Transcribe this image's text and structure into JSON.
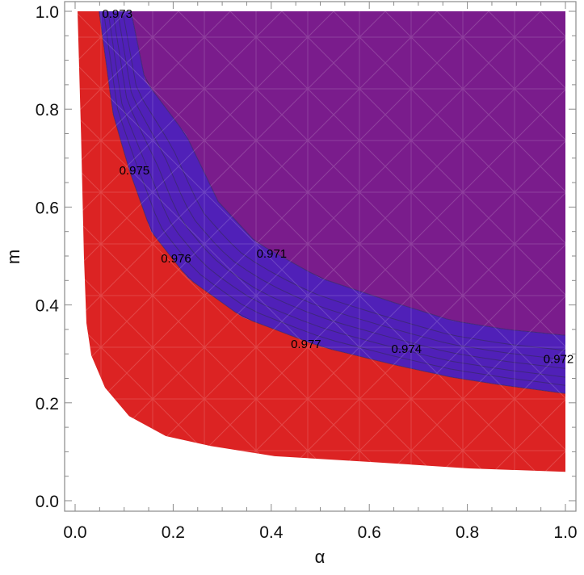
{
  "chart_data": {
    "type": "area",
    "title": "",
    "xlabel": "α",
    "ylabel": "m",
    "xlim": [
      0.0,
      1.0
    ],
    "ylim": [
      0.0,
      1.0
    ],
    "grid": false,
    "legend": null,
    "x_ticks": [
      "0.0",
      "0.2",
      "0.4",
      "0.6",
      "0.8",
      "1.0"
    ],
    "y_ticks": [
      "0.0",
      "0.2",
      "0.4",
      "0.6",
      "0.8",
      "1.0"
    ],
    "colors": {
      "red_region": "#dc2323",
      "blue_band": "#5020b8",
      "purple_region": "#7a1c8c",
      "contour_line": "#3a2a6a",
      "mesh": "#ffffff"
    },
    "regions": {
      "lower_boundary": [
        [
          0.005,
          1.0
        ],
        [
          0.012,
          0.75
        ],
        [
          0.018,
          0.5
        ],
        [
          0.023,
          0.363
        ],
        [
          0.033,
          0.297
        ],
        [
          0.061,
          0.231
        ],
        [
          0.11,
          0.173
        ],
        [
          0.185,
          0.132
        ],
        [
          0.275,
          0.112
        ],
        [
          0.407,
          0.091
        ],
        [
          0.605,
          0.079
        ],
        [
          0.803,
          0.066
        ],
        [
          1.0,
          0.059
        ]
      ],
      "red_blue_boundary": [
        [
          0.049,
          1.0
        ],
        [
          0.077,
          0.792
        ],
        [
          0.11,
          0.677
        ],
        [
          0.155,
          0.55
        ],
        [
          0.23,
          0.455
        ],
        [
          0.341,
          0.375
        ],
        [
          0.5,
          0.315
        ],
        [
          0.65,
          0.278
        ],
        [
          0.769,
          0.252
        ],
        [
          0.88,
          0.235
        ],
        [
          1.0,
          0.219
        ]
      ],
      "blue_purple_boundary": [
        [
          0.114,
          1.0
        ],
        [
          0.143,
          0.858
        ],
        [
          0.226,
          0.748
        ],
        [
          0.292,
          0.611
        ],
        [
          0.369,
          0.528
        ],
        [
          0.5,
          0.455
        ],
        [
          0.65,
          0.405
        ],
        [
          0.769,
          0.368
        ],
        [
          0.88,
          0.35
        ],
        [
          1.0,
          0.338
        ]
      ]
    },
    "contours": [
      {
        "level": "0.971",
        "label_pos": [
          0.37,
          0.505
        ]
      },
      {
        "level": "0.972",
        "label_pos": [
          0.955,
          0.29
        ]
      },
      {
        "level": "0.973",
        "label_pos": [
          0.055,
          0.995
        ]
      },
      {
        "level": "0.974",
        "label_pos": [
          0.645,
          0.31
        ]
      },
      {
        "level": "0.975",
        "label_pos": [
          0.09,
          0.675
        ]
      },
      {
        "level": "0.976",
        "label_pos": [
          0.175,
          0.495
        ]
      },
      {
        "level": "0.977",
        "label_pos": [
          0.44,
          0.32
        ]
      }
    ]
  }
}
